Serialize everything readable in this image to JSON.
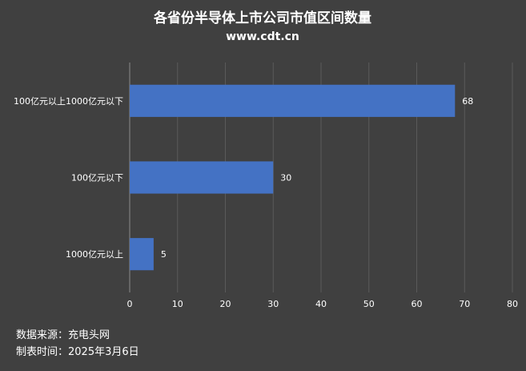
{
  "chart_data": {
    "type": "bar",
    "orientation": "horizontal",
    "title": "各省份半导体上市公司市值区间数量",
    "subtitle": "www.cdt.cn",
    "categories": [
      "100亿元以上1000亿元以下",
      "100亿元以下",
      "1000亿元以上"
    ],
    "values": [
      68,
      30,
      5
    ],
    "xlim": [
      0,
      80
    ],
    "xticks": [
      0,
      10,
      20,
      30,
      40,
      50,
      60,
      70,
      80
    ],
    "grid": "vertical",
    "bar_color": "#4472c4",
    "background": "#404040",
    "gridline_color": "#5a5a5a"
  },
  "footer": {
    "source": "数据来源：充电头网",
    "date": "制表时间：2025年3月6日"
  }
}
